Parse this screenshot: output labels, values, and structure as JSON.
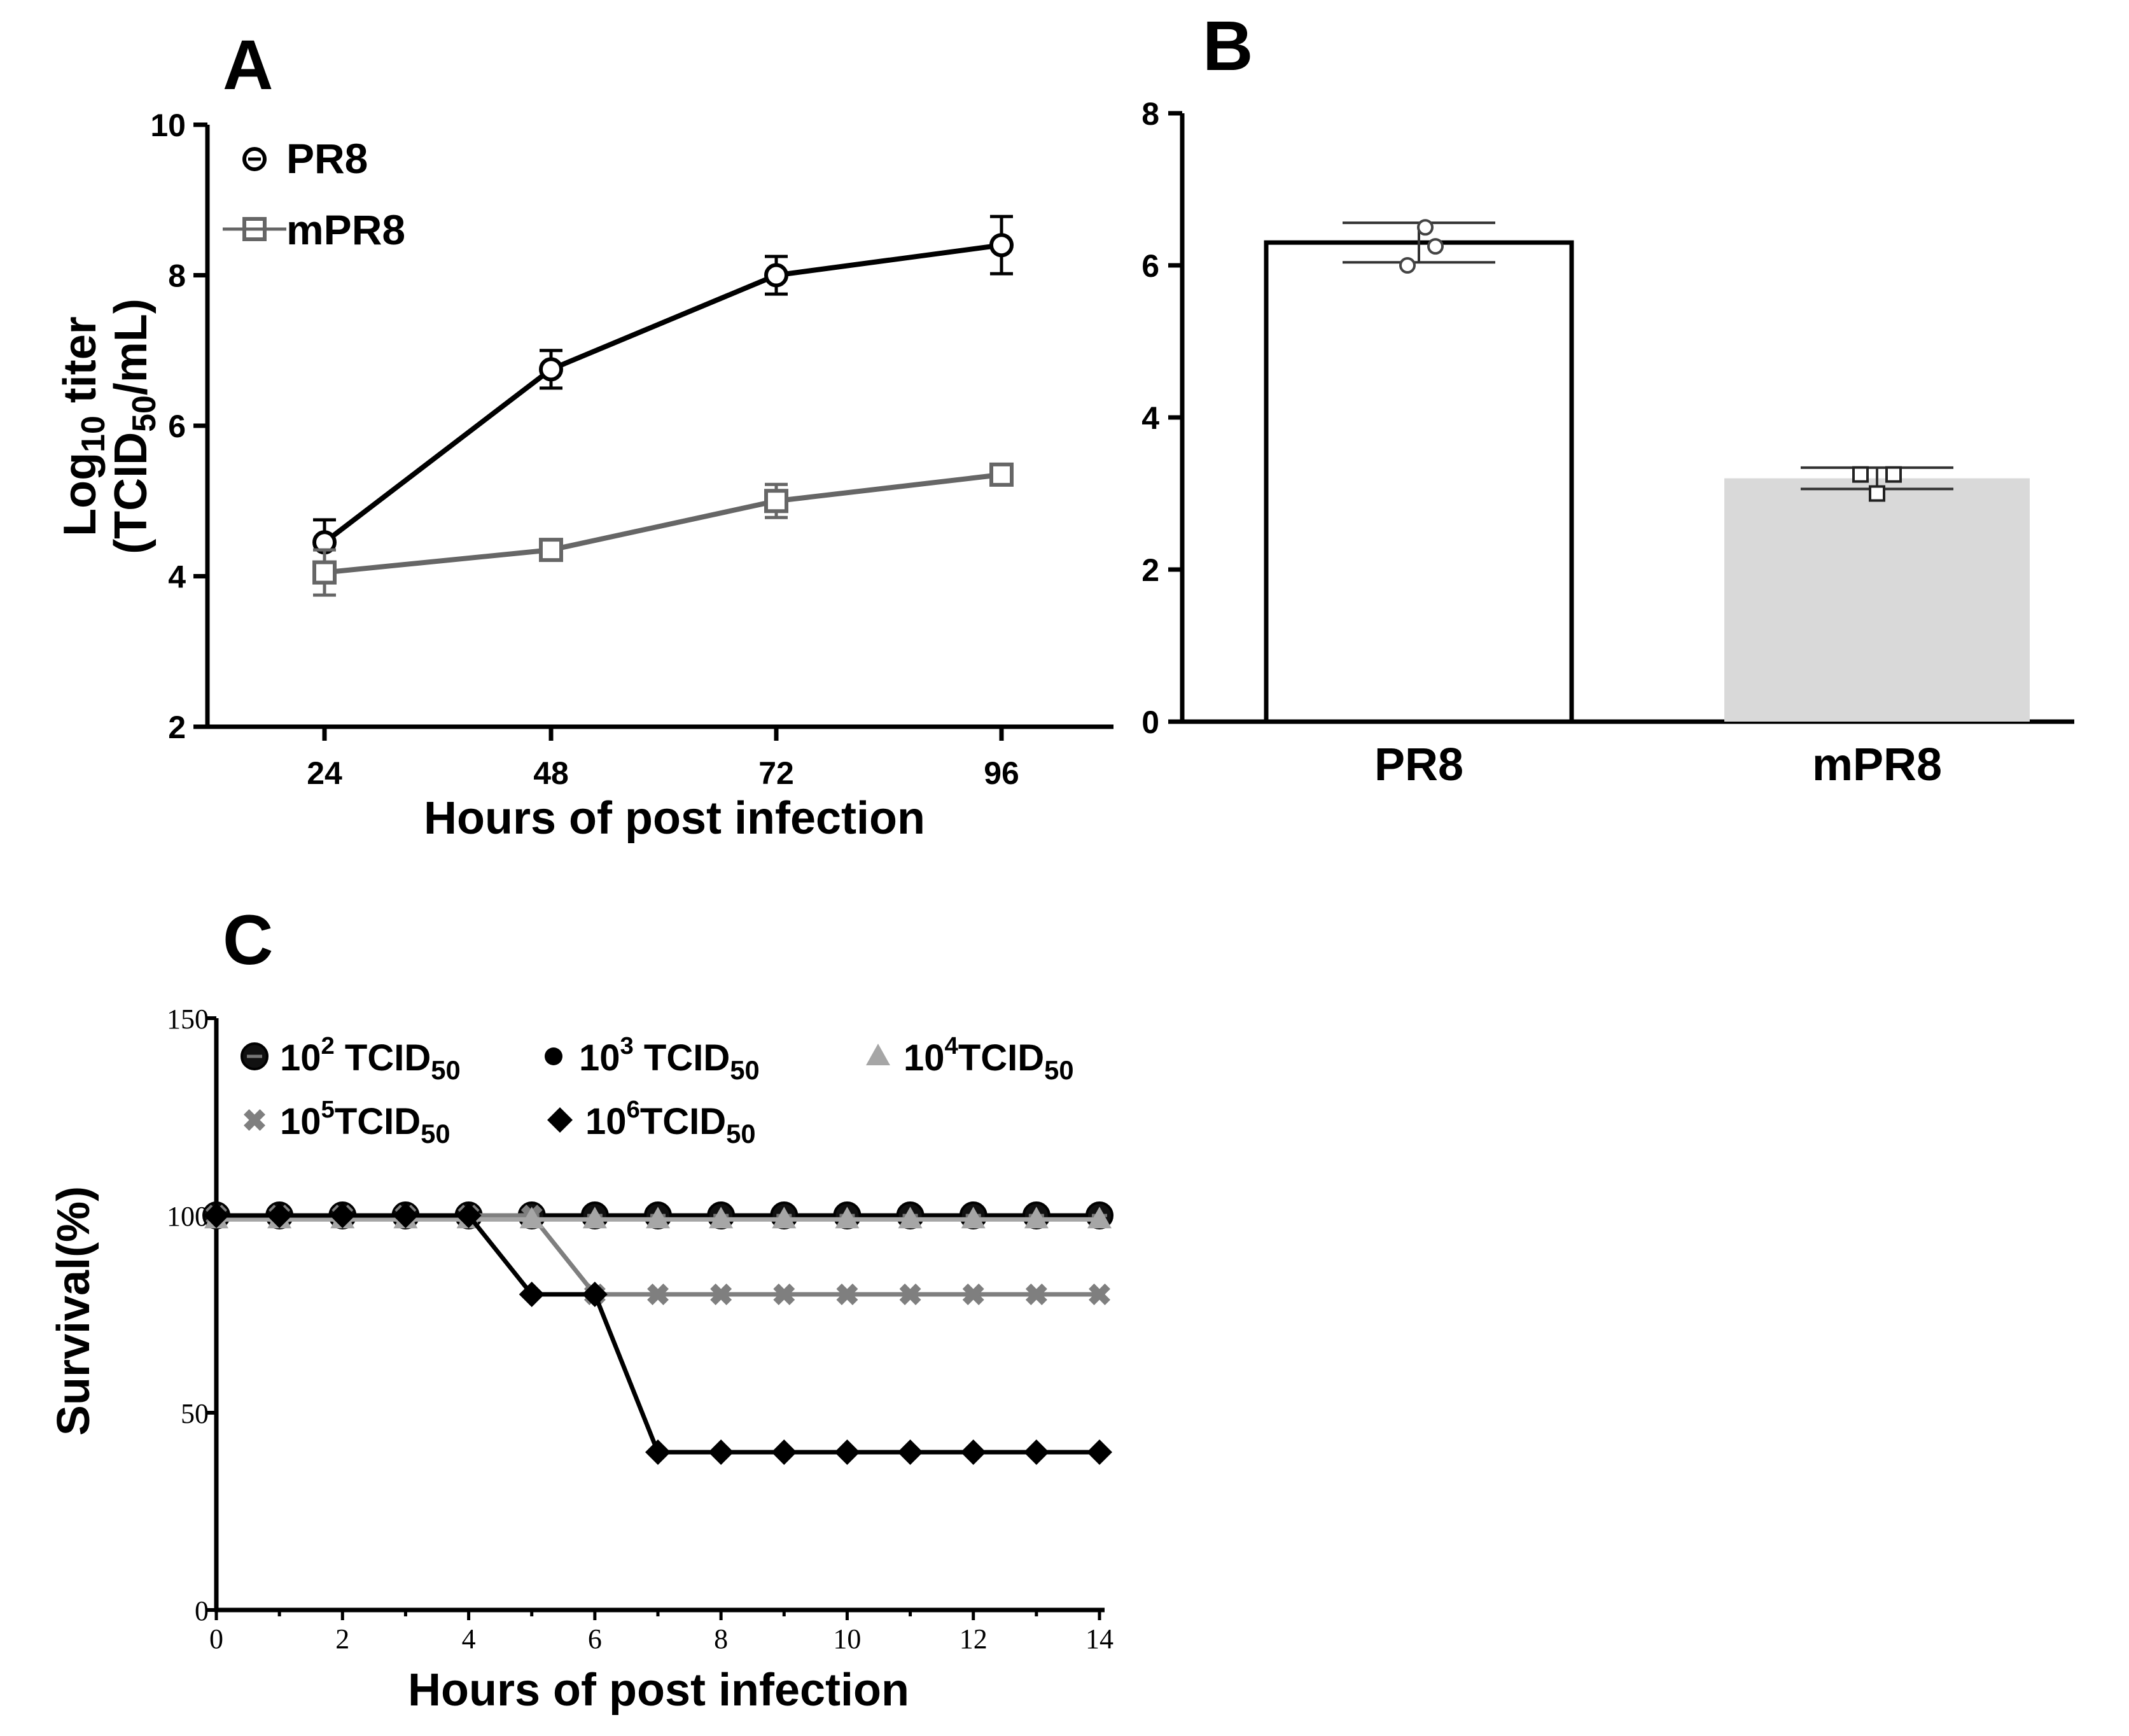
{
  "colors": {
    "pr8": "#000000",
    "mpr8": "#666666",
    "bar_mpr8": "#d9d9d9",
    "gray_light": "#a6a6a6",
    "gray_mid": "#7f7f7f"
  },
  "chart_data": [
    {
      "panel": "A",
      "type": "line",
      "xlabel": "Hours of post infection",
      "ylabel_line1": "Log",
      "ylabel_line1_sub": "10",
      "ylabel_line1_rest": " titer",
      "ylabel_line2_a": "(TCID",
      "ylabel_line2_sub": "50",
      "ylabel_line2_b": "/mL)",
      "x": [
        24,
        48,
        72,
        96
      ],
      "xticks": [
        "24",
        "48",
        "72",
        "96"
      ],
      "ylim": [
        2,
        10
      ],
      "yticks": [
        "2",
        "4",
        "6",
        "8",
        "10"
      ],
      "legend_position": "top-left",
      "series": [
        {
          "name": "PR8",
          "marker": "circle",
          "values": [
            4.45,
            6.75,
            8.0,
            8.4
          ],
          "errors": [
            0.3,
            0.25,
            0.25,
            0.38
          ]
        },
        {
          "name": "mPR8",
          "marker": "square",
          "values": [
            4.05,
            4.35,
            5.0,
            5.35
          ],
          "errors": [
            0.3,
            0.1,
            0.22,
            0.1
          ]
        }
      ]
    },
    {
      "panel": "B",
      "type": "bar",
      "categories": [
        "PR8",
        "mPR8"
      ],
      "values": [
        6.3,
        3.2
      ],
      "sd": [
        0.26,
        0.14
      ],
      "points": [
        [
          6.5,
          6.0,
          6.25
        ],
        [
          3.25,
          3.0,
          3.25
        ]
      ],
      "ylim": [
        0,
        8
      ],
      "yticks": [
        "0",
        "2",
        "4",
        "6",
        "8"
      ]
    },
    {
      "panel": "C",
      "type": "line",
      "xlabel": "Hours of post infection",
      "ylabel": "Survival(%)",
      "x": [
        0,
        1,
        2,
        3,
        4,
        5,
        6,
        7,
        8,
        9,
        10,
        11,
        12,
        13,
        14
      ],
      "xticks": [
        "0",
        "2",
        "4",
        "6",
        "8",
        "10",
        "12",
        "14"
      ],
      "ylim": [
        0,
        150
      ],
      "yticks": [
        "0",
        "50",
        "100",
        "150"
      ],
      "legend_position": "top",
      "series": [
        {
          "name_base": "10",
          "name_sup": "2",
          "name_unit": " TCID",
          "name_sub": "50",
          "marker": "circle",
          "values": [
            100,
            100,
            100,
            100,
            100,
            100,
            100,
            100,
            100,
            100,
            100,
            100,
            100,
            100,
            100
          ]
        },
        {
          "name_base": "10",
          "name_sup": "3",
          "name_unit": " TCID",
          "name_sub": "50",
          "marker": "dot",
          "values": [
            100,
            100,
            100,
            100,
            100,
            100,
            100,
            100,
            100,
            100,
            100,
            100,
            100,
            100,
            100
          ]
        },
        {
          "name_base": "10",
          "name_sup": "4",
          "name_unit": "TCID",
          "name_sub": "50",
          "marker": "triangle",
          "values": [
            99,
            99,
            99,
            99,
            99,
            99,
            99,
            99,
            99,
            99,
            99,
            99,
            99,
            99,
            99
          ]
        },
        {
          "name_base": "10",
          "name_sup": "5",
          "name_unit": "TCID",
          "name_sub": "50",
          "marker": "cross",
          "values": [
            100,
            100,
            100,
            100,
            100,
            100,
            80,
            80,
            80,
            80,
            80,
            80,
            80,
            80,
            80
          ]
        },
        {
          "name_base": "10",
          "name_sup": "6",
          "name_unit": "TCID",
          "name_sub": "50",
          "marker": "diamond",
          "values": [
            100,
            100,
            100,
            100,
            100,
            80,
            80,
            40,
            40,
            40,
            40,
            40,
            40,
            40,
            40
          ]
        }
      ]
    }
  ]
}
